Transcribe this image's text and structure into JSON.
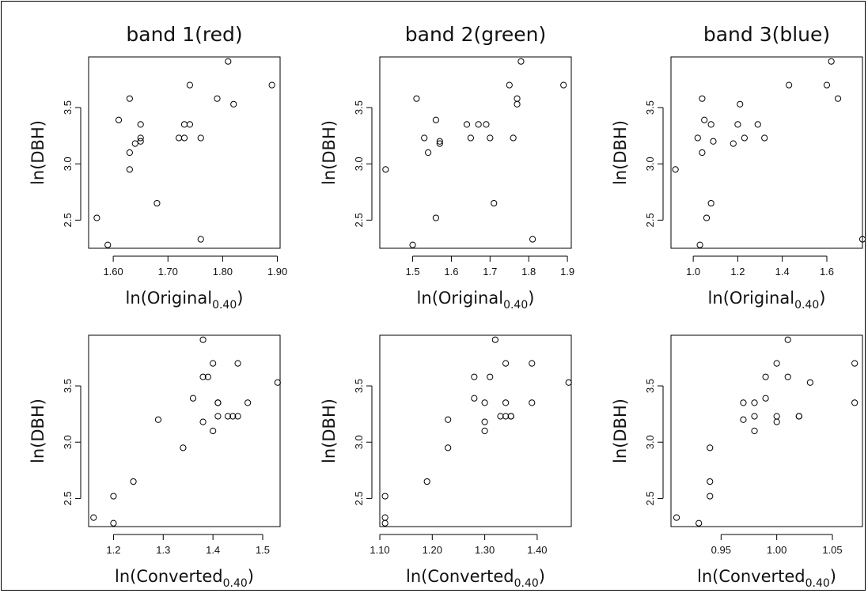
{
  "chart_data": [
    {
      "type": "scatter",
      "title": "band 1(red)",
      "xlabel": "ln(Original",
      "xlabel_sub": "0.40",
      "ylabel": "ln(DBH)",
      "xlim": [
        1.555,
        1.905
      ],
      "ylim": [
        2.25,
        3.95
      ],
      "xticks": [
        1.6,
        1.7,
        1.8,
        1.9
      ],
      "xtick_labels": [
        "1.60",
        "1.70",
        "1.80",
        "1.90"
      ],
      "yticks": [
        2.5,
        3.0,
        3.5
      ],
      "ytick_labels": [
        "2.5",
        "3.0",
        "3.5"
      ],
      "points": [
        [
          1.57,
          2.52
        ],
        [
          1.59,
          2.28
        ],
        [
          1.61,
          3.39
        ],
        [
          1.63,
          3.58
        ],
        [
          1.63,
          3.1
        ],
        [
          1.63,
          2.95
        ],
        [
          1.64,
          3.18
        ],
        [
          1.65,
          3.2
        ],
        [
          1.65,
          3.23
        ],
        [
          1.65,
          3.35
        ],
        [
          1.68,
          2.65
        ],
        [
          1.72,
          3.23
        ],
        [
          1.73,
          3.35
        ],
        [
          1.73,
          3.23
        ],
        [
          1.74,
          3.35
        ],
        [
          1.74,
          3.7
        ],
        [
          1.76,
          2.33
        ],
        [
          1.76,
          3.23
        ],
        [
          1.79,
          3.58
        ],
        [
          1.81,
          3.91
        ],
        [
          1.82,
          3.53
        ],
        [
          1.89,
          3.7
        ]
      ]
    },
    {
      "type": "scatter",
      "title": "band 2(green)",
      "xlabel": "ln(Original",
      "xlabel_sub": "0.40",
      "ylabel": "ln(DBH)",
      "xlim": [
        1.415,
        1.91
      ],
      "ylim": [
        2.25,
        3.95
      ],
      "xticks": [
        1.5,
        1.6,
        1.7,
        1.8,
        1.9
      ],
      "xtick_labels": [
        "1.5",
        "1.6",
        "1.7",
        "1.8",
        "1.9"
      ],
      "yticks": [
        2.5,
        3.0,
        3.5
      ],
      "ytick_labels": [
        "2.5",
        "3.0",
        "3.5"
      ],
      "points": [
        [
          1.43,
          2.95
        ],
        [
          1.5,
          2.28
        ],
        [
          1.51,
          3.58
        ],
        [
          1.53,
          3.23
        ],
        [
          1.54,
          3.1
        ],
        [
          1.56,
          3.39
        ],
        [
          1.56,
          2.52
        ],
        [
          1.57,
          3.2
        ],
        [
          1.57,
          3.18
        ],
        [
          1.64,
          3.35
        ],
        [
          1.65,
          3.23
        ],
        [
          1.67,
          3.35
        ],
        [
          1.69,
          3.35
        ],
        [
          1.7,
          3.23
        ],
        [
          1.71,
          2.65
        ],
        [
          1.75,
          3.7
        ],
        [
          1.76,
          3.23
        ],
        [
          1.77,
          3.58
        ],
        [
          1.77,
          3.53
        ],
        [
          1.78,
          3.91
        ],
        [
          1.81,
          2.33
        ],
        [
          1.89,
          3.7
        ]
      ]
    },
    {
      "type": "scatter",
      "title": "band 3(blue)",
      "xlabel": "ln(Original",
      "xlabel_sub": "0.40",
      "ylabel": "ln(DBH)",
      "xlim": [
        0.9,
        1.76
      ],
      "ylim": [
        2.25,
        3.95
      ],
      "xticks": [
        1.0,
        1.2,
        1.4,
        1.6
      ],
      "xtick_labels": [
        "1.0",
        "1.2",
        "1.4",
        "1.6"
      ],
      "yticks": [
        2.5,
        3.0,
        3.5
      ],
      "ytick_labels": [
        "2.5",
        "3.0",
        "3.5"
      ],
      "points": [
        [
          0.92,
          2.95
        ],
        [
          1.02,
          3.23
        ],
        [
          1.03,
          2.28
        ],
        [
          1.04,
          3.1
        ],
        [
          1.04,
          3.58
        ],
        [
          1.05,
          3.39
        ],
        [
          1.06,
          2.52
        ],
        [
          1.08,
          3.35
        ],
        [
          1.08,
          2.65
        ],
        [
          1.09,
          3.2
        ],
        [
          1.18,
          3.18
        ],
        [
          1.2,
          3.35
        ],
        [
          1.21,
          3.53
        ],
        [
          1.23,
          3.23
        ],
        [
          1.29,
          3.35
        ],
        [
          1.32,
          3.23
        ],
        [
          1.43,
          3.7
        ],
        [
          1.6,
          3.7
        ],
        [
          1.62,
          3.91
        ],
        [
          1.65,
          3.58
        ],
        [
          1.76,
          2.33
        ]
      ]
    },
    {
      "type": "scatter",
      "title": "",
      "xlabel": "ln(Converted",
      "xlabel_sub": "0.40",
      "ylabel": "ln(DBH)",
      "xlim": [
        1.15,
        1.535
      ],
      "ylim": [
        2.25,
        3.95
      ],
      "xticks": [
        1.2,
        1.3,
        1.4,
        1.5
      ],
      "xtick_labels": [
        "1.2",
        "1.3",
        "1.4",
        "1.5"
      ],
      "yticks": [
        2.5,
        3.0,
        3.5
      ],
      "ytick_labels": [
        "2.5",
        "3.0",
        "3.5"
      ],
      "points": [
        [
          1.16,
          2.33
        ],
        [
          1.2,
          2.52
        ],
        [
          1.2,
          2.28
        ],
        [
          1.24,
          2.65
        ],
        [
          1.29,
          3.2
        ],
        [
          1.34,
          2.95
        ],
        [
          1.36,
          3.39
        ],
        [
          1.38,
          3.58
        ],
        [
          1.38,
          3.91
        ],
        [
          1.38,
          3.18
        ],
        [
          1.39,
          3.58
        ],
        [
          1.4,
          3.1
        ],
        [
          1.4,
          3.7
        ],
        [
          1.41,
          3.23
        ],
        [
          1.41,
          3.35
        ],
        [
          1.41,
          3.35
        ],
        [
          1.43,
          3.23
        ],
        [
          1.44,
          3.23
        ],
        [
          1.45,
          3.7
        ],
        [
          1.45,
          3.23
        ],
        [
          1.47,
          3.35
        ],
        [
          1.53,
          3.53
        ]
      ]
    },
    {
      "type": "scatter",
      "title": "",
      "xlabel": "ln(Converted",
      "xlabel_sub": "0.40",
      "ylabel": "ln(DBH)",
      "xlim": [
        1.1,
        1.465
      ],
      "ylim": [
        2.25,
        3.95
      ],
      "xticks": [
        1.1,
        1.2,
        1.3,
        1.4
      ],
      "xtick_labels": [
        "1.10",
        "1.20",
        "1.30",
        "1.40"
      ],
      "yticks": [
        2.5,
        3.0,
        3.5
      ],
      "ytick_labels": [
        "2.5",
        "3.0",
        "3.5"
      ],
      "points": [
        [
          1.11,
          2.33
        ],
        [
          1.11,
          2.28
        ],
        [
          1.11,
          2.52
        ],
        [
          1.19,
          2.65
        ],
        [
          1.23,
          3.2
        ],
        [
          1.23,
          2.95
        ],
        [
          1.28,
          3.39
        ],
        [
          1.28,
          3.58
        ],
        [
          1.3,
          3.1
        ],
        [
          1.3,
          3.35
        ],
        [
          1.3,
          3.18
        ],
        [
          1.31,
          3.58
        ],
        [
          1.32,
          3.91
        ],
        [
          1.33,
          3.23
        ],
        [
          1.34,
          3.23
        ],
        [
          1.34,
          3.35
        ],
        [
          1.34,
          3.7
        ],
        [
          1.35,
          3.23
        ],
        [
          1.35,
          3.23
        ],
        [
          1.39,
          3.35
        ],
        [
          1.39,
          3.7
        ],
        [
          1.46,
          3.53
        ]
      ]
    },
    {
      "type": "scatter",
      "title": "",
      "xlabel": "ln(Converted",
      "xlabel_sub": "0.40",
      "ylabel": "ln(DBH)",
      "xlim": [
        0.905,
        1.077
      ],
      "ylim": [
        2.25,
        3.95
      ],
      "xticks": [
        0.95,
        1.0,
        1.05
      ],
      "xtick_labels": [
        "0.95",
        "1.00",
        "1.05"
      ],
      "yticks": [
        2.5,
        3.0,
        3.5
      ],
      "ytick_labels": [
        "2.5",
        "3.0",
        "3.5"
      ],
      "points": [
        [
          0.91,
          2.33
        ],
        [
          0.93,
          2.28
        ],
        [
          0.94,
          2.52
        ],
        [
          0.94,
          2.95
        ],
        [
          0.94,
          2.65
        ],
        [
          0.97,
          3.2
        ],
        [
          0.97,
          3.35
        ],
        [
          0.98,
          3.1
        ],
        [
          0.98,
          3.35
        ],
        [
          0.98,
          3.23
        ],
        [
          0.99,
          3.58
        ],
        [
          0.99,
          3.39
        ],
        [
          1.0,
          3.23
        ],
        [
          1.0,
          3.7
        ],
        [
          1.0,
          3.18
        ],
        [
          1.01,
          3.91
        ],
        [
          1.01,
          3.58
        ],
        [
          1.02,
          3.23
        ],
        [
          1.02,
          3.23
        ],
        [
          1.03,
          3.53
        ],
        [
          1.07,
          3.7
        ],
        [
          1.07,
          3.35
        ]
      ]
    }
  ]
}
